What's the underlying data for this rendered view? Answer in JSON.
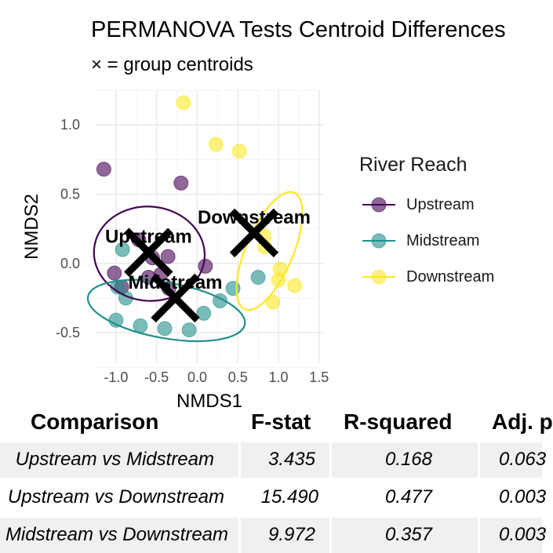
{
  "chart_data": {
    "type": "scatter",
    "title": "PERMANOVA Tests Centroid Differences",
    "subtitle": "× = group centroids",
    "xlabel": "NMDS1",
    "ylabel": "NMDS2",
    "xlim": [
      -1.25,
      1.55
    ],
    "ylim": [
      -0.72,
      1.25
    ],
    "xticks": [
      -1.0,
      -0.5,
      0.0,
      0.5,
      1.0,
      1.5
    ],
    "xtick_labels": [
      "-1.0",
      "-0.5",
      "0.0",
      "0.5",
      "1.0",
      "1.5"
    ],
    "yticks": [
      -0.5,
      0.0,
      0.5,
      1.0
    ],
    "ytick_labels": [
      "-0.5",
      "0.0",
      "0.5",
      "1.0"
    ],
    "grid": true,
    "legend": {
      "title": "River Reach",
      "position": "right"
    },
    "series": [
      {
        "name": "Upstream",
        "color": "#440154",
        "points": [
          [
            -1.15,
            0.68
          ],
          [
            -0.2,
            0.58
          ],
          [
            -1.02,
            -0.07
          ],
          [
            -0.93,
            -0.17
          ],
          [
            -0.55,
            0.04
          ],
          [
            -0.36,
            0.05
          ],
          [
            -0.6,
            -0.1
          ],
          [
            -0.35,
            -0.18
          ],
          [
            0.1,
            -0.02
          ],
          [
            -0.72,
            0.17
          ],
          [
            -0.45,
            -0.08
          ]
        ]
      },
      {
        "name": "Midstream",
        "color": "#21908C",
        "points": [
          [
            -0.92,
            0.1
          ],
          [
            -0.98,
            -0.17
          ],
          [
            -0.88,
            -0.25
          ],
          [
            -1.0,
            -0.41
          ],
          [
            -0.7,
            -0.45
          ],
          [
            -0.4,
            -0.47
          ],
          [
            -0.1,
            -0.48
          ],
          [
            0.08,
            -0.36
          ],
          [
            0.28,
            -0.27
          ],
          [
            0.44,
            -0.18
          ],
          [
            0.75,
            -0.1
          ]
        ]
      },
      {
        "name": "Downstream",
        "color": "#FDE725",
        "points": [
          [
            -0.17,
            1.16
          ],
          [
            0.23,
            0.86
          ],
          [
            0.52,
            0.81
          ],
          [
            0.83,
            0.12
          ],
          [
            1.02,
            -0.04
          ],
          [
            1.0,
            -0.12
          ],
          [
            1.2,
            -0.16
          ],
          [
            0.93,
            -0.28
          ],
          [
            0.82,
            0.2
          ]
        ]
      }
    ],
    "centroids": [
      {
        "name": "Upstream",
        "label": "Upstream",
        "x": -0.6,
        "y": 0.08
      },
      {
        "name": "Midstream",
        "label": "Midstream",
        "x": -0.27,
        "y": -0.25
      },
      {
        "name": "Downstream",
        "label": "Downstream",
        "x": 0.7,
        "y": 0.22
      }
    ],
    "ellipses": [
      {
        "name": "Upstream",
        "cx": -0.59,
        "cy": 0.07,
        "rx": 0.58,
        "ry": 0.4,
        "angle": -85
      },
      {
        "name": "Midstream",
        "cx": -0.38,
        "cy": -0.34,
        "rx": 0.98,
        "ry": 0.2,
        "angle": 10
      },
      {
        "name": "Downstream",
        "cx": 0.89,
        "cy": 0.09,
        "rx": 0.78,
        "ry": 0.17,
        "angle": -67
      }
    ]
  },
  "table": {
    "headers": [
      "Comparison",
      "F-stat",
      "R-squared",
      "Adj. p"
    ],
    "rows": [
      {
        "comparison": "Upstream vs Midstream",
        "fstat": "3.435",
        "rsq": "0.168",
        "adjp": "0.063"
      },
      {
        "comparison": "Upstream vs Downstream",
        "fstat": "15.490",
        "rsq": "0.477",
        "adjp": "0.003"
      },
      {
        "comparison": "Midstream vs Downstream",
        "fstat": "9.972",
        "rsq": "0.357",
        "adjp": "0.003"
      }
    ]
  }
}
